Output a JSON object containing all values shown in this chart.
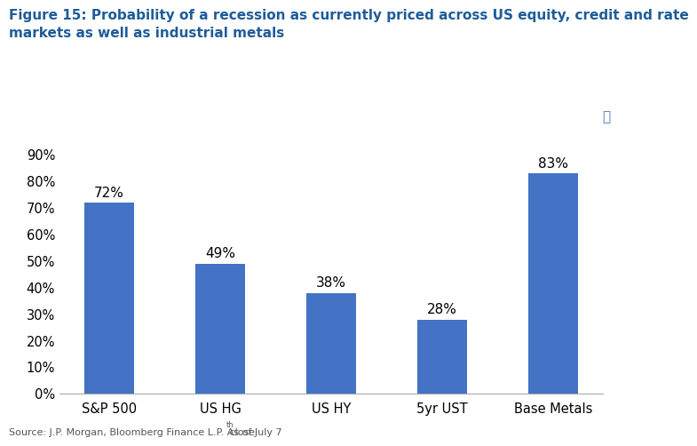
{
  "title": "Figure 15: Probability of a recession as currently priced across US equity, credit and rate\nmarkets as well as industrial metals",
  "categories": [
    "S&P 500",
    "US HG",
    "US HY",
    "5yr UST",
    "Base Metals"
  ],
  "values": [
    0.72,
    0.49,
    0.38,
    0.28,
    0.83
  ],
  "labels": [
    "72%",
    "49%",
    "38%",
    "28%",
    "83%"
  ],
  "bar_color": "#4472C4",
  "title_color": "#1F5C99",
  "source_main": "Source: J.P. Morgan, Bloomberg Finance L.P. As of July 7",
  "source_superscript": "th",
  "source_suffix": " close",
  "ylim": [
    0,
    0.9
  ],
  "yticks": [
    0.0,
    0.1,
    0.2,
    0.3,
    0.4,
    0.5,
    0.6,
    0.7,
    0.8,
    0.9
  ],
  "ytick_labels": [
    "0%",
    "10%",
    "20%",
    "30%",
    "40%",
    "50%",
    "60%",
    "70%",
    "80%",
    "90%"
  ],
  "background_color": "#ffffff",
  "label_fontsize": 11,
  "title_fontsize": 11,
  "source_fontsize": 8,
  "xtick_fontsize": 10.5,
  "ytick_fontsize": 10.5,
  "bar_width": 0.45
}
